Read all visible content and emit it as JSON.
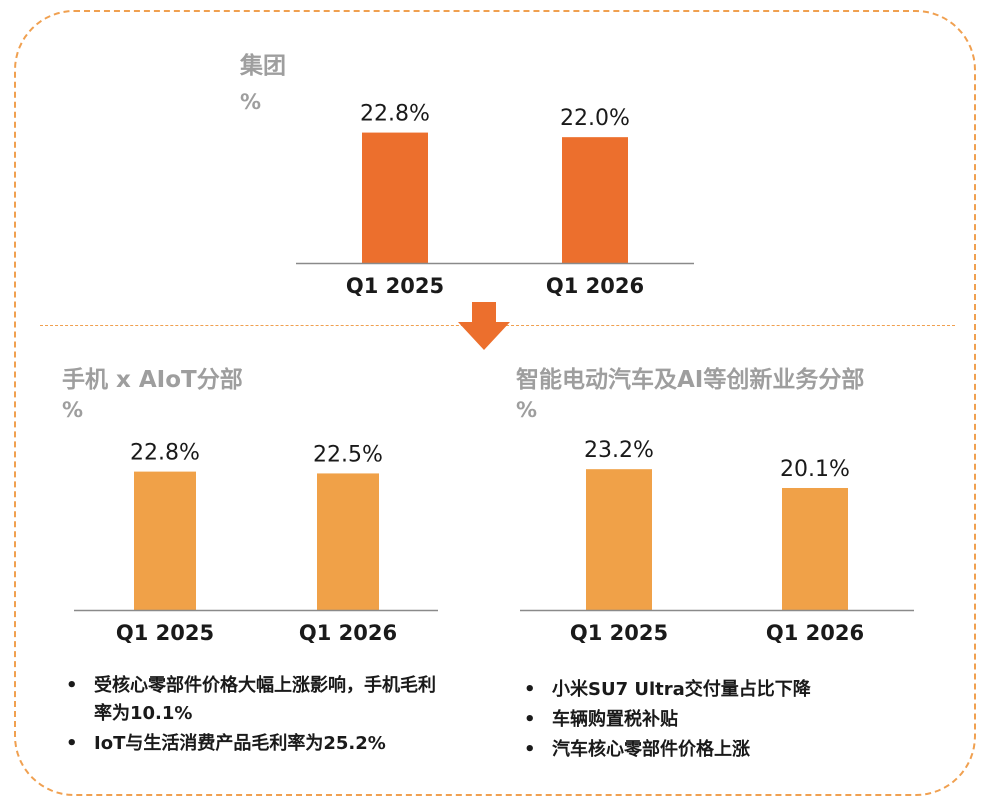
{
  "colors": {
    "dark_orange": "#EC6F2D",
    "light_orange": "#F0A148",
    "frame": "#F0A050",
    "muted_text": "#9e9e9e"
  },
  "icons": {
    "arrow": "down-arrow-icon"
  },
  "group": {
    "title": "集团",
    "unit": "%"
  },
  "phone": {
    "title": "手机 x AIoT分部",
    "unit": "%"
  },
  "ev": {
    "title": "智能电动汽车及AI等创新业务分部",
    "unit": "%"
  },
  "notes_left": [
    "受核心零部件价格大幅上涨影响，手机毛利率为10.1%",
    "IoT与生活消费产品毛利率为25.2%"
  ],
  "notes_right": [
    "小米SU7 Ultra交付量占比下降",
    "车辆购置税补贴",
    "汽车核心零部件价格上涨"
  ],
  "chart_data": [
    {
      "type": "bar",
      "title": "集团",
      "ylabel": "%",
      "categories": [
        "Q1 2025",
        "Q1 2026"
      ],
      "values": [
        22.8,
        22.0
      ],
      "labels": [
        "22.8%",
        "22.0%"
      ],
      "ylim": [
        0,
        25
      ],
      "color": "#EC6F2D"
    },
    {
      "type": "bar",
      "title": "手机 x AIoT分部",
      "ylabel": "%",
      "categories": [
        "Q1 2025",
        "Q1 2026"
      ],
      "values": [
        22.8,
        22.5
      ],
      "labels": [
        "22.8%",
        "22.5%"
      ],
      "ylim": [
        0,
        25
      ],
      "color": "#F0A148"
    },
    {
      "type": "bar",
      "title": "智能电动汽车及AI等创新业务分部",
      "ylabel": "%",
      "categories": [
        "Q1 2025",
        "Q1 2026"
      ],
      "values": [
        23.2,
        20.1
      ],
      "labels": [
        "23.2%",
        "20.1%"
      ],
      "ylim": [
        0,
        25
      ],
      "color": "#F0A148"
    }
  ]
}
